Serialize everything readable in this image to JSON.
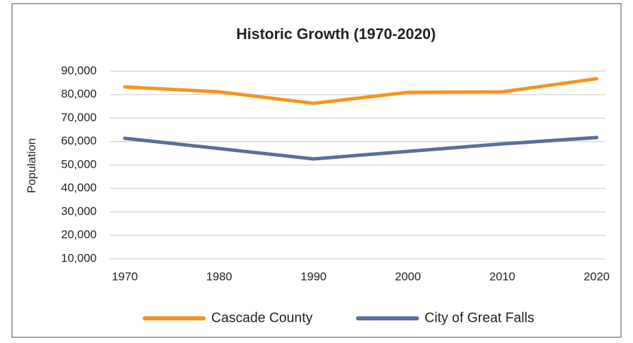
{
  "chart_data": {
    "type": "line",
    "title": "Historic Growth (1970-2020)",
    "y_label": "Population",
    "categories": [
      "1970",
      "1980",
      "1990",
      "2000",
      "2010",
      "2020"
    ],
    "series": [
      {
        "name": "Cascade County",
        "color": "#f7941d",
        "values": [
          83300,
          81200,
          76300,
          81000,
          81200,
          86800
        ]
      },
      {
        "name": "City of Great Falls",
        "color": "#5a6f99",
        "values": [
          61400,
          57000,
          52600,
          55800,
          59000,
          61700
        ]
      }
    ],
    "ylim": [
      10000,
      90000
    ],
    "yticks": [
      {
        "value": 10000,
        "label": "10,000"
      },
      {
        "value": 20000,
        "label": "20,000"
      },
      {
        "value": 30000,
        "label": "30,000"
      },
      {
        "value": 40000,
        "label": "40,000"
      },
      {
        "value": 50000,
        "label": "50,000"
      },
      {
        "value": 60000,
        "label": "60,000"
      },
      {
        "value": 70000,
        "label": "70,000"
      },
      {
        "value": 80000,
        "label": "80,000"
      },
      {
        "value": 90000,
        "label": "90,000"
      }
    ],
    "grid": true,
    "legend": "bottom"
  }
}
